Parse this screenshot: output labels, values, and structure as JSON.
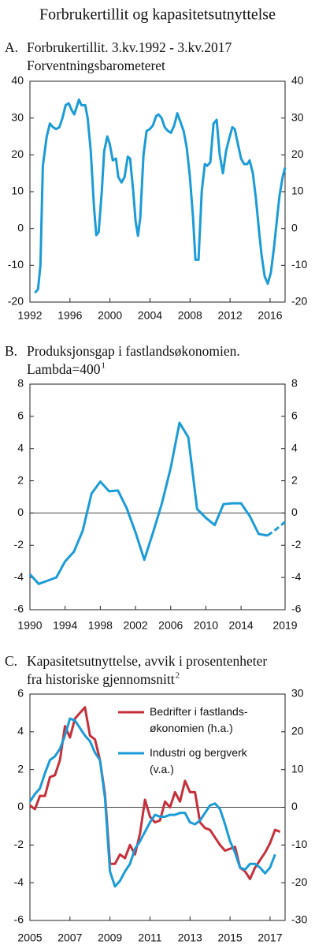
{
  "title": "Forbrukertillit og kapasitetsutnyttelse",
  "chart_data": [
    {
      "type": "line",
      "label": "A.",
      "title": "Forbrukertillit. 3.kv.1992 - 3.kv.2017",
      "subtitle": "Forventningsbarometeret",
      "x": [
        1992.5,
        1992.81,
        1993.05,
        1993.29,
        1993.68,
        1994.0,
        1994.31,
        1994.62,
        1994.94,
        1995.25,
        1995.57,
        1995.88,
        1996.2,
        1996.43,
        1996.67,
        1996.9,
        1997.14,
        1997.53,
        1997.77,
        1998.08,
        1998.4,
        1998.63,
        1998.87,
        1999.18,
        1999.42,
        1999.73,
        1999.97,
        2000.28,
        2000.6,
        2000.83,
        2001.15,
        2001.46,
        2001.78,
        2002.01,
        2002.33,
        2002.56,
        2002.8,
        2003.03,
        2003.35,
        2003.66,
        2003.98,
        2004.29,
        2004.61,
        2004.84,
        2005.16,
        2005.47,
        2005.79,
        2006.1,
        2006.42,
        2006.73,
        2007.04,
        2007.36,
        2007.67,
        2007.99,
        2008.3,
        2008.54,
        2008.85,
        2009.17,
        2009.48,
        2009.72,
        2010.03,
        2010.35,
        2010.66,
        2010.97,
        2011.29,
        2011.6,
        2011.92,
        2012.23,
        2012.47,
        2012.78,
        2013.1,
        2013.41,
        2013.73,
        2013.96,
        2014.28,
        2014.59,
        2014.91,
        2015.14,
        2015.46,
        2015.77,
        2016.08,
        2016.4,
        2016.71,
        2016.95,
        2017.26,
        2017.5
      ],
      "series": [
        {
          "color": "#1b9bd7",
          "values": [
            -17.5,
            -16.5,
            -10,
            17,
            25,
            28.5,
            27.5,
            27,
            27.5,
            30,
            33.5,
            34,
            32,
            31,
            33,
            35,
            33.5,
            33.5,
            30,
            21,
            6,
            -1.8,
            -1,
            10,
            21,
            25,
            23,
            18.5,
            19,
            14,
            12.5,
            14,
            19.5,
            19,
            10,
            2,
            -2,
            3,
            20,
            26.5,
            27,
            28,
            30.5,
            31,
            30,
            27.5,
            26.5,
            26,
            28,
            31.3,
            29,
            26.5,
            22,
            14,
            3,
            -8.5,
            -8.5,
            10,
            17.5,
            17,
            18,
            28.5,
            29.5,
            20,
            15,
            21,
            24.5,
            27.5,
            27,
            23,
            19,
            17.5,
            17.5,
            18.5,
            15,
            8,
            -1,
            -7,
            -13,
            -15,
            -12,
            -5,
            3,
            9,
            14,
            16.5
          ]
        }
      ],
      "xlim": [
        1992,
        2017.5
      ],
      "xticks": [
        1992,
        1996,
        2000,
        2004,
        2008,
        2012,
        2016
      ],
      "ylim": [
        -20,
        40
      ],
      "yticks": [
        40,
        30,
        20,
        10,
        0,
        -10,
        -20
      ],
      "mirror_y_axis": true,
      "zero_line": false
    },
    {
      "type": "line",
      "label": "B.",
      "title": "Produksjonsgap i fastlandsøkonomien.",
      "subtitle": "Lambda=400",
      "footnote_marker": "1",
      "x": [
        1990,
        1991,
        1992,
        1993,
        1994,
        1995,
        1996,
        1997,
        1998,
        1999,
        2000,
        2001,
        2002,
        2003,
        2004,
        2005,
        2006,
        2007,
        2008,
        2009,
        2010,
        2011,
        2012,
        2013,
        2014,
        2015,
        2016,
        2017,
        2018,
        2019
      ],
      "series": [
        {
          "color": "#1b9bd7",
          "dash_from": 27,
          "values": [
            -3.8,
            -4.4,
            -4.2,
            -4.0,
            -3.0,
            -2.4,
            -1.1,
            1.2,
            1.95,
            1.35,
            1.4,
            0.3,
            -1.2,
            -2.9,
            -1.2,
            0.6,
            2.8,
            5.6,
            4.7,
            0.25,
            -0.3,
            -0.75,
            0.55,
            0.6,
            0.6,
            -0.2,
            -1.3,
            -1.4,
            -1.0,
            -0.55
          ]
        }
      ],
      "xlim": [
        1990,
        2019
      ],
      "xticks": [
        1990,
        1994,
        1998,
        2002,
        2006,
        2010,
        2014,
        2019
      ],
      "ylim": [
        -6,
        8
      ],
      "yticks": [
        8,
        6,
        4,
        2,
        0,
        -2,
        -4,
        -6
      ],
      "mirror_y_axis": true,
      "zero_line": true
    },
    {
      "type": "line",
      "label": "C.",
      "title": "Kapasitetsutnyttelse, avvik i prosentenheter",
      "subtitle": "fra historiske gjennomsnitt",
      "footnote_marker": "2",
      "x": [
        2005,
        2005.25,
        2005.5,
        2005.75,
        2006,
        2006.25,
        2006.5,
        2006.75,
        2007,
        2007.25,
        2007.5,
        2007.75,
        2008,
        2008.25,
        2008.5,
        2008.75,
        2009,
        2009.25,
        2009.5,
        2009.75,
        2010,
        2010.25,
        2010.5,
        2010.75,
        2011,
        2011.25,
        2011.5,
        2011.75,
        2012,
        2012.25,
        2012.5,
        2012.75,
        2013,
        2013.25,
        2013.5,
        2013.75,
        2014,
        2014.25,
        2014.5,
        2014.75,
        2015,
        2015.25,
        2015.5,
        2015.75,
        2016,
        2016.25,
        2016.5,
        2016.75,
        2017,
        2017.25,
        2017.5
      ],
      "series": [
        {
          "name": "Bedrifter i fastlands-\nøkonomien (h.a.)",
          "color": "#c6303b",
          "axis": "y2",
          "values": [
            0.5,
            -0.5,
            3,
            3,
            8,
            8.5,
            12.5,
            21.5,
            18.5,
            23.5,
            25,
            26.5,
            19,
            18,
            12.5,
            3.5,
            -15,
            -15,
            -12.5,
            -13.5,
            -10,
            -12.5,
            -7,
            2,
            -2.5,
            -4,
            -3.5,
            1.5,
            0,
            4,
            1.5,
            7,
            4,
            4,
            -4,
            -5.5,
            -6,
            -8,
            -10,
            -11.5,
            -11,
            -10.5,
            -16,
            -17,
            -19,
            -16,
            -14,
            -12,
            -9.5,
            -6,
            -6.5
          ]
        },
        {
          "name": "Industri og bergverk\n(v.a.)",
          "color": "#1b9bd7",
          "values": [
            0.3,
            0.7,
            1.0,
            1.8,
            2.5,
            2.7,
            3.1,
            3.8,
            4.7,
            4.6,
            4.2,
            3.8,
            3.5,
            2.9,
            2.5,
            0.5,
            -3.4,
            -4.2,
            -3.9,
            -3.4,
            -3.0,
            -2.2,
            -1.8,
            -1.3,
            -0.8,
            -0.4,
            -0.5,
            -0.5,
            -0.4,
            -0.4,
            -0.3,
            -0.3,
            -0.8,
            -0.9,
            -0.7,
            -0.3,
            0.1,
            0.2,
            -0.1,
            -0.9,
            -1.8,
            -2.4,
            -3.2,
            -3.3,
            -3.0,
            -3.0,
            -3.2,
            -3.5,
            -3.2,
            -2.5,
            null
          ]
        }
      ],
      "xlim": [
        2005,
        2017.75
      ],
      "xticks": [
        2005,
        2007,
        2009,
        2011,
        2013,
        2015,
        2017
      ],
      "ylim": [
        -6,
        6
      ],
      "yticks": [
        6,
        4,
        2,
        0,
        -2,
        -4,
        -6
      ],
      "y2lim": [
        -30,
        30
      ],
      "y2ticks": [
        30,
        20,
        10,
        0,
        -10,
        -20,
        -30
      ],
      "zero_line": true,
      "legend": "upper center"
    }
  ]
}
